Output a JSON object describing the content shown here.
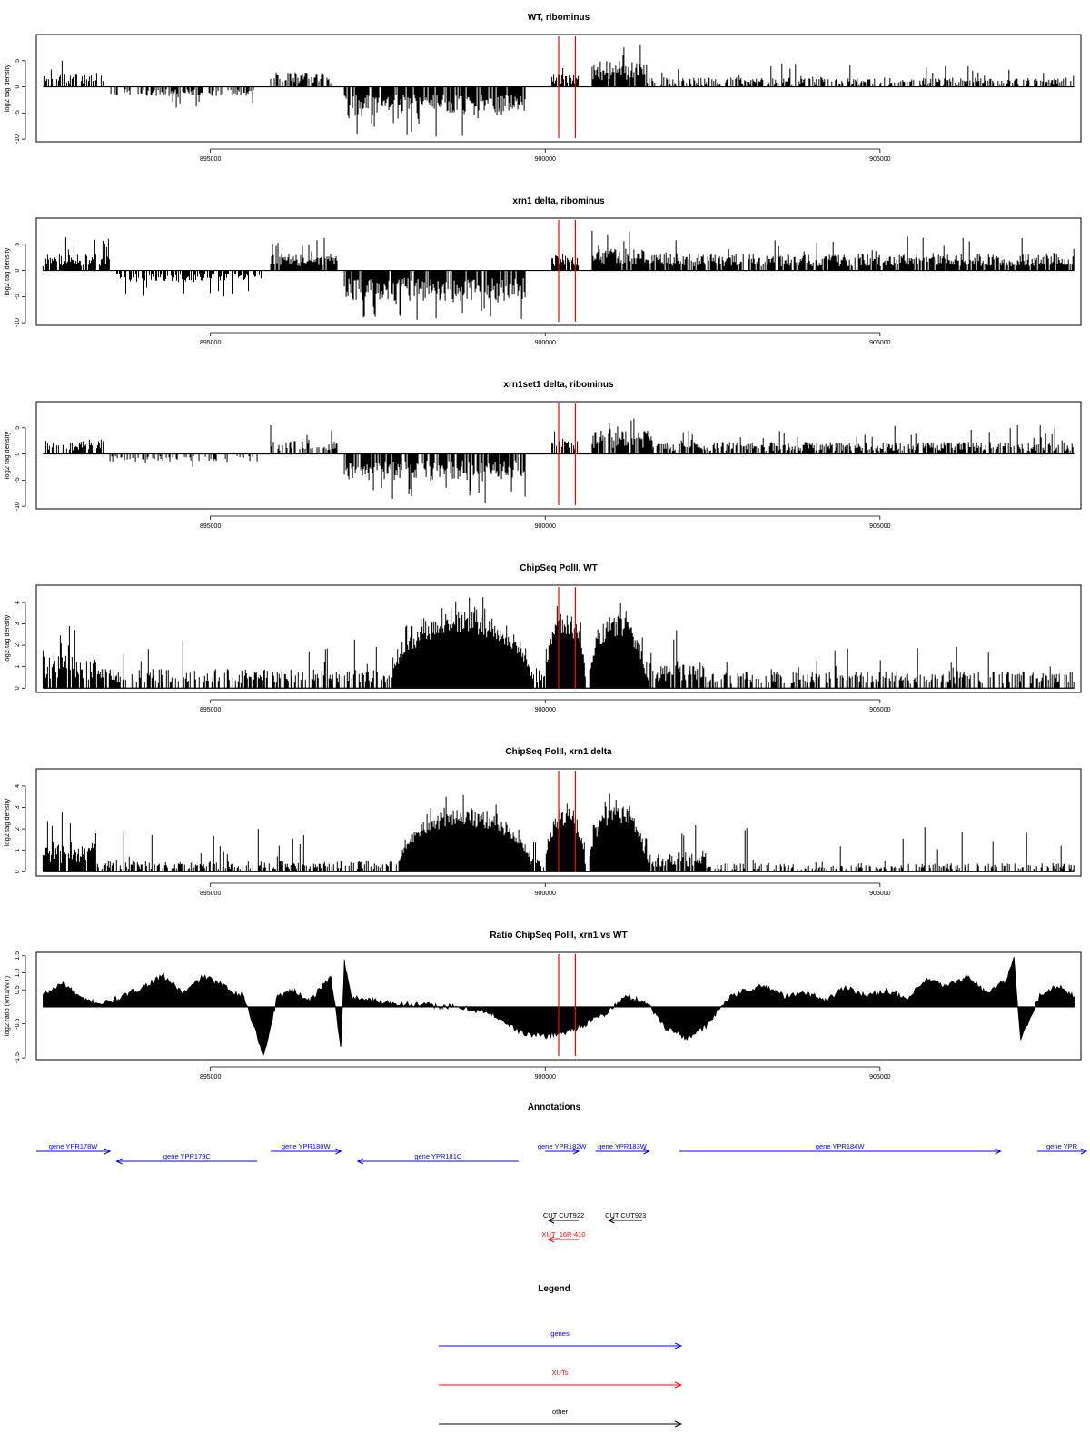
{
  "chart_data": [
    {
      "type": "bar",
      "title": "WT, ribominus",
      "ylabel": "log2 tag density",
      "xlim": [
        892400,
        908000
      ],
      "ylim": [
        -10.5,
        10
      ],
      "yticks": [
        -10,
        -5,
        0,
        5
      ],
      "xticks": [
        895000,
        900000,
        905000
      ],
      "baseline": 0,
      "markers_x": [
        900200,
        900450
      ],
      "marker_color": "#ff0000",
      "segments": [
        {
          "x0": 892500,
          "x1": 893400,
          "sign": 1,
          "level": 2.5,
          "max": 5,
          "density": 0.6
        },
        {
          "x0": 893500,
          "x1": 895700,
          "sign": -1,
          "level": 1.8,
          "max": 4,
          "density": 0.45
        },
        {
          "x0": 895900,
          "x1": 896800,
          "sign": 1,
          "level": 2.8,
          "max": 6,
          "density": 0.6
        },
        {
          "x0": 897000,
          "x1": 899700,
          "sign": -1,
          "level": 5.5,
          "max": 9.5,
          "density": 0.85
        },
        {
          "x0": 900100,
          "x1": 900500,
          "sign": 1,
          "level": 2.5,
          "max": 5,
          "density": 0.75
        },
        {
          "x0": 900700,
          "x1": 901500,
          "sign": 1,
          "level": 5,
          "max": 9,
          "density": 0.9
        },
        {
          "x0": 901500,
          "x1": 907900,
          "sign": 1,
          "level": 1.8,
          "max": 5,
          "density": 0.55
        }
      ]
    },
    {
      "type": "bar",
      "title": "xrn1 delta, ribominus",
      "ylabel": "log2 tag density",
      "xlim": [
        892400,
        908000
      ],
      "ylim": [
        -10.5,
        10
      ],
      "yticks": [
        -10,
        -5,
        0,
        5
      ],
      "xticks": [
        895000,
        900000,
        905000
      ],
      "baseline": 0,
      "markers_x": [
        900200,
        900450
      ],
      "marker_color": "#ff0000",
      "segments": [
        {
          "x0": 892500,
          "x1": 893500,
          "sign": 1,
          "level": 3.2,
          "max": 7,
          "density": 0.85
        },
        {
          "x0": 893600,
          "x1": 895800,
          "sign": -1,
          "level": 2.2,
          "max": 5,
          "density": 0.6
        },
        {
          "x0": 895900,
          "x1": 896900,
          "sign": 1,
          "level": 3.2,
          "max": 6.5,
          "density": 0.85
        },
        {
          "x0": 897000,
          "x1": 899700,
          "sign": -1,
          "level": 5.8,
          "max": 9.5,
          "density": 0.9
        },
        {
          "x0": 900100,
          "x1": 900500,
          "sign": 1,
          "level": 3.2,
          "max": 5.5,
          "density": 0.85
        },
        {
          "x0": 900700,
          "x1": 901600,
          "sign": 1,
          "level": 4.2,
          "max": 8,
          "density": 0.9
        },
        {
          "x0": 901600,
          "x1": 907900,
          "sign": 1,
          "level": 3.2,
          "max": 6.5,
          "density": 0.85
        }
      ]
    },
    {
      "type": "bar",
      "title": "xrn1set1 delta, ribominus",
      "ylabel": "log2 tag density",
      "xlim": [
        892400,
        908000
      ],
      "ylim": [
        -10.5,
        10
      ],
      "yticks": [
        -10,
        -5,
        0,
        5
      ],
      "xticks": [
        895000,
        900000,
        905000
      ],
      "baseline": 0,
      "markers_x": [
        900200,
        900450
      ],
      "marker_color": "#ff0000",
      "segments": [
        {
          "x0": 892500,
          "x1": 893400,
          "sign": 1,
          "level": 2.8,
          "max": 6.5,
          "density": 0.7
        },
        {
          "x0": 893500,
          "x1": 895800,
          "sign": -1,
          "level": 1.5,
          "max": 3.5,
          "density": 0.35
        },
        {
          "x0": 895900,
          "x1": 896900,
          "sign": 1,
          "level": 2.5,
          "max": 6,
          "density": 0.5
        },
        {
          "x0": 897000,
          "x1": 899700,
          "sign": -1,
          "level": 5,
          "max": 9.5,
          "density": 0.8
        },
        {
          "x0": 900100,
          "x1": 900500,
          "sign": 1,
          "level": 3,
          "max": 6,
          "density": 0.8
        },
        {
          "x0": 900700,
          "x1": 901600,
          "sign": 1,
          "level": 4.5,
          "max": 8,
          "density": 0.9
        },
        {
          "x0": 901600,
          "x1": 907900,
          "sign": 1,
          "level": 2.3,
          "max": 5.5,
          "density": 0.7
        }
      ]
    },
    {
      "type": "bar",
      "title": "ChipSeq PolII, WT",
      "ylabel": "log2 tag density",
      "xlim": [
        892400,
        908000
      ],
      "ylim": [
        -0.2,
        4.8
      ],
      "yticks": [
        0,
        1,
        2,
        3,
        4
      ],
      "xticks": [
        895000,
        900000,
        905000
      ],
      "baseline": 0,
      "markers_x": [
        900200,
        900450
      ],
      "marker_color": "#ff0000",
      "segments": [
        {
          "x0": 892500,
          "x1": 893300,
          "sign": 1,
          "level": 1.6,
          "max": 3,
          "density": 0.9
        },
        {
          "x0": 893300,
          "x1": 897700,
          "sign": 1,
          "level": 0.9,
          "max": 2.5,
          "density": 0.55
        },
        {
          "x0": 897700,
          "x1": 899800,
          "sign": 1,
          "level": 3.6,
          "max": 4.6,
          "density": 1,
          "bump": true
        },
        {
          "x0": 899800,
          "x1": 900000,
          "sign": 1,
          "level": 1,
          "max": 2,
          "density": 0.6
        },
        {
          "x0": 900000,
          "x1": 900600,
          "sign": 1,
          "level": 3.6,
          "max": 4.7,
          "density": 1,
          "bump": true
        },
        {
          "x0": 900650,
          "x1": 901500,
          "sign": 1,
          "level": 3.4,
          "max": 4.3,
          "density": 1,
          "bump": true
        },
        {
          "x0": 901500,
          "x1": 902400,
          "sign": 1,
          "level": 1.3,
          "max": 2.8,
          "density": 0.8
        },
        {
          "x0": 902400,
          "x1": 907900,
          "sign": 1,
          "level": 0.8,
          "max": 2,
          "density": 0.5
        }
      ]
    },
    {
      "type": "bar",
      "title": "ChipSeq PolII, xrn1 delta",
      "ylabel": "log2 tag density",
      "xlim": [
        892400,
        908000
      ],
      "ylim": [
        -0.2,
        4.8
      ],
      "yticks": [
        0,
        1,
        2,
        3,
        4
      ],
      "xticks": [
        895000,
        900000,
        905000
      ],
      "baseline": 0,
      "markers_x": [
        900200,
        900450
      ],
      "marker_color": "#ff0000",
      "segments": [
        {
          "x0": 892500,
          "x1": 893300,
          "sign": 1,
          "level": 1.4,
          "max": 2.8,
          "density": 0.9
        },
        {
          "x0": 893300,
          "x1": 897800,
          "sign": 1,
          "level": 0.5,
          "max": 2,
          "density": 0.5
        },
        {
          "x0": 897800,
          "x1": 899800,
          "sign": 1,
          "level": 3,
          "max": 4,
          "density": 1,
          "bump": true
        },
        {
          "x0": 899800,
          "x1": 900000,
          "sign": 1,
          "level": 0.6,
          "max": 1.5,
          "density": 0.5
        },
        {
          "x0": 900000,
          "x1": 900600,
          "sign": 1,
          "level": 3,
          "max": 3.8,
          "density": 1,
          "bump": true
        },
        {
          "x0": 900650,
          "x1": 901500,
          "sign": 1,
          "level": 3.2,
          "max": 4.1,
          "density": 1,
          "bump": true
        },
        {
          "x0": 901500,
          "x1": 902400,
          "sign": 1,
          "level": 0.9,
          "max": 2.2,
          "density": 0.8
        },
        {
          "x0": 902400,
          "x1": 907900,
          "sign": 1,
          "level": 0.4,
          "max": 2.2,
          "density": 0.45
        }
      ]
    },
    {
      "type": "area",
      "title": "Ratio ChipSeq PolII, xrn1 vs WT",
      "ylabel": "log2 ratio (xrn1/WT)",
      "xlim": [
        892400,
        908000
      ],
      "ylim": [
        -1.55,
        1.6
      ],
      "yticks": [
        -1.5,
        -0.5,
        0.5,
        1.0,
        1.5
      ],
      "yticklabels": [
        "-1.5",
        "-0.5",
        "0.5",
        "1.0",
        "1.5"
      ],
      "xticks": [
        895000,
        900000,
        905000
      ],
      "baseline": 0,
      "markers_x": [
        900200,
        900450
      ],
      "marker_color": "#ff0000",
      "x": [
        892500,
        892800,
        893100,
        893400,
        893700,
        894000,
        894300,
        894600,
        894900,
        895200,
        895500,
        895800,
        896000,
        896200,
        896500,
        896800,
        896950,
        897000,
        897100,
        897400,
        897800,
        898200,
        898600,
        899000,
        899300,
        899500,
        899700,
        900000,
        900300,
        900600,
        900900,
        901200,
        901500,
        901800,
        902100,
        902400,
        902700,
        903000,
        903300,
        903600,
        903900,
        904200,
        904500,
        904800,
        905100,
        905400,
        905700,
        906000,
        906300,
        906600,
        906900,
        907000,
        907100,
        907400,
        907700,
        907900
      ],
      "values": [
        0.35,
        0.7,
        0.2,
        0.1,
        0.3,
        0.6,
        0.9,
        0.4,
        0.9,
        0.6,
        0.3,
        -1.45,
        0.3,
        0.5,
        0.2,
        0.9,
        -1.2,
        1.35,
        0.3,
        0.2,
        0.1,
        0.05,
        0.0,
        -0.1,
        -0.3,
        -0.6,
        -0.8,
        -0.85,
        -0.75,
        -0.5,
        -0.2,
        0.3,
        0.15,
        -0.6,
        -0.9,
        -0.6,
        0.2,
        0.5,
        0.6,
        0.3,
        0.4,
        0.2,
        0.6,
        0.3,
        0.5,
        0.2,
        0.8,
        0.6,
        0.9,
        0.4,
        0.8,
        1.45,
        -1.0,
        0.4,
        0.6,
        0.3
      ]
    }
  ],
  "annotations": {
    "title": "Annotations",
    "genes": [
      {
        "label": "gene YPR178W",
        "x0": 892400,
        "x1": 893500,
        "dir": "right",
        "row": 1
      },
      {
        "label": "gene YPR179C",
        "x0": 893600,
        "x1": 895700,
        "dir": "left",
        "row": 2
      },
      {
        "label": "gene YPR180W",
        "x0": 895900,
        "x1": 896950,
        "dir": "right",
        "row": 1
      },
      {
        "label": "gene YPR181C",
        "x0": 897200,
        "x1": 899600,
        "dir": "left",
        "row": 2
      },
      {
        "label": "gene YPR182W",
        "x0": 900000,
        "x1": 900500,
        "dir": "right",
        "row": 1
      },
      {
        "label": "gene YPR183W",
        "x0": 900750,
        "x1": 901550,
        "dir": "right",
        "row": 1
      },
      {
        "label": "gene YPR184W",
        "x0": 902000,
        "x1": 906800,
        "dir": "right",
        "row": 1
      },
      {
        "label": "gene YPR",
        "x0": 907350,
        "x1": 908700,
        "dir": "right",
        "row": 1
      }
    ],
    "cuts": [
      {
        "label": "CUT CUT922",
        "x0": 900050,
        "x1": 900500,
        "dir": "left",
        "row": 1
      },
      {
        "label": "CUT CUT923",
        "x0": 900950,
        "x1": 901450,
        "dir": "left",
        "row": 1
      }
    ],
    "xuts": [
      {
        "label": "XUT_16R-410",
        "x0": 900050,
        "x1": 900500,
        "dir": "left",
        "row": 2
      }
    ]
  },
  "legend": {
    "title": "Legend",
    "items": [
      {
        "label": "genes",
        "color": "#0000ff"
      },
      {
        "label": "XUTs",
        "color": "#ff0000"
      },
      {
        "label": "other",
        "color": "#000000"
      }
    ]
  },
  "colors": {
    "gene": "#0000ff",
    "xut": "#ff0000",
    "other": "#000000",
    "marker": "#ff0000",
    "bar": "#000000"
  }
}
